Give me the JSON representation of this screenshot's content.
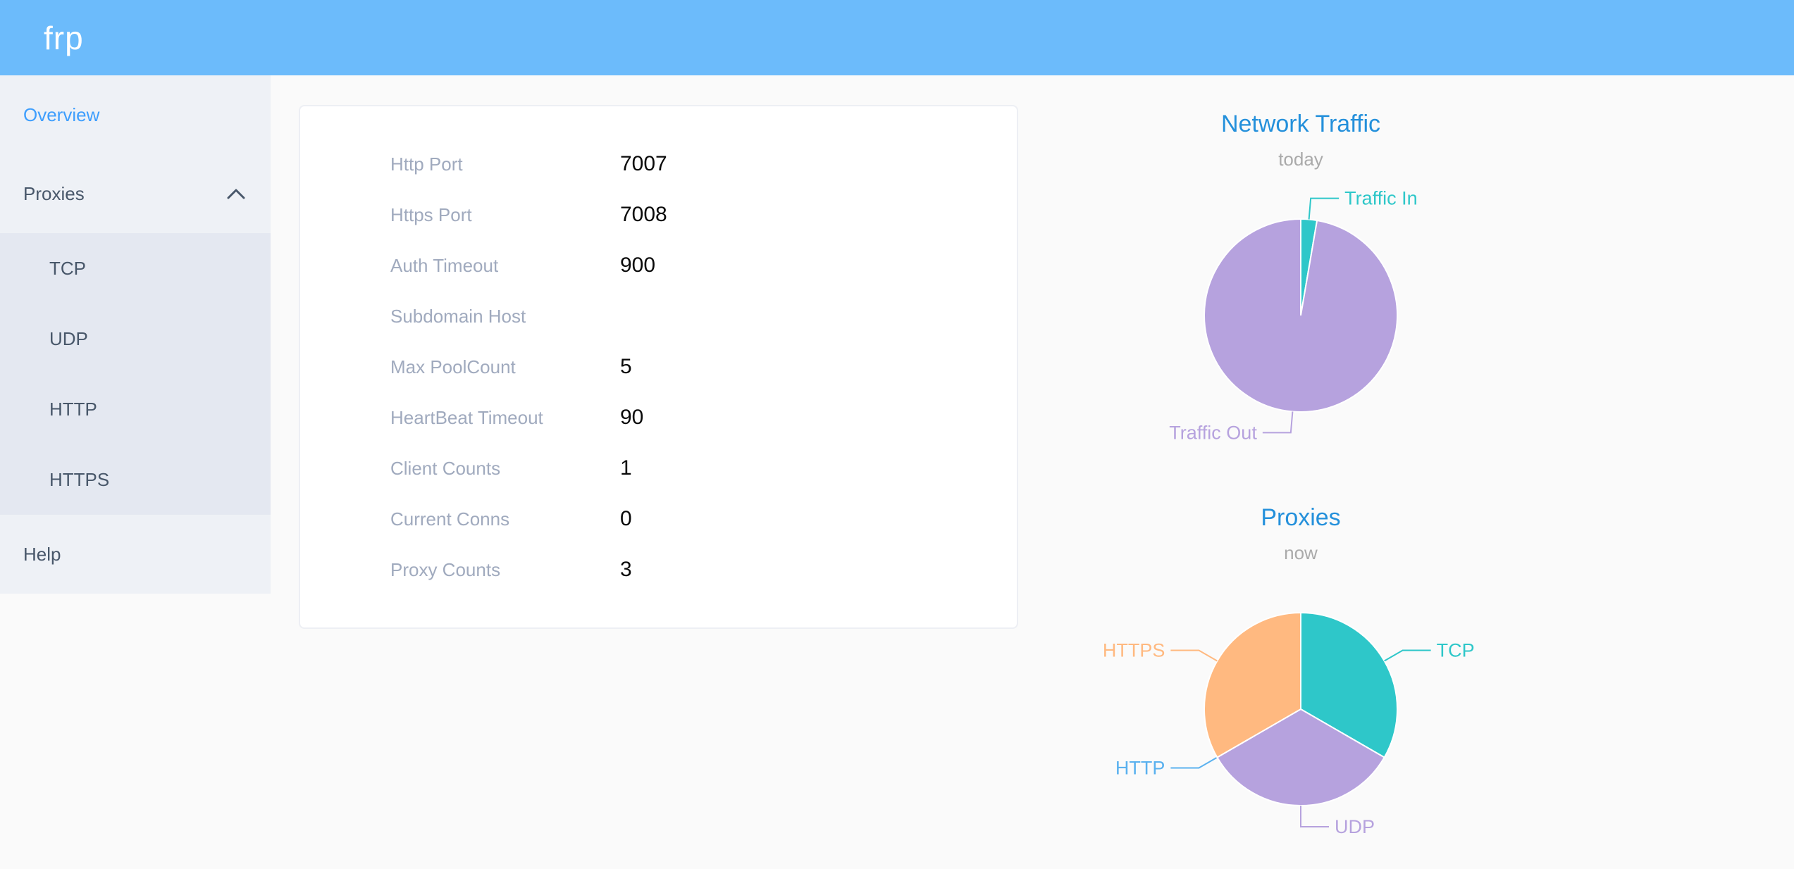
{
  "header": {
    "logo": "frp"
  },
  "sidebar": {
    "items": [
      {
        "label": "Overview",
        "active": true
      },
      {
        "label": "Proxies",
        "expanded": true,
        "children": [
          "TCP",
          "UDP",
          "HTTP",
          "HTTPS"
        ]
      },
      {
        "label": "Help"
      }
    ]
  },
  "overview": {
    "rows": [
      {
        "label": "Http Port",
        "value": "7007"
      },
      {
        "label": "Https Port",
        "value": "7008"
      },
      {
        "label": "Auth Timeout",
        "value": "900"
      },
      {
        "label": "Subdomain Host",
        "value": ""
      },
      {
        "label": "Max PoolCount",
        "value": "5"
      },
      {
        "label": "HeartBeat Timeout",
        "value": "90"
      },
      {
        "label": "Client Counts",
        "value": "1"
      },
      {
        "label": "Current Conns",
        "value": "0"
      },
      {
        "label": "Proxy Counts",
        "value": "3"
      }
    ]
  },
  "chart_data": [
    {
      "type": "pie",
      "title": "Network Traffic",
      "subtitle": "today",
      "legend_position": "none",
      "unit": "percent (estimated from arc angles; byte values not shown on screen)",
      "slices": [
        {
          "label": "Traffic In",
          "value": 2.7,
          "color": "#2ec7c9"
        },
        {
          "label": "Traffic Out",
          "value": 97.3,
          "color": "#b6a2de"
        }
      ]
    },
    {
      "type": "pie",
      "title": "Proxies",
      "subtitle": "now",
      "legend_position": "none",
      "unit": "proxy count",
      "slices": [
        {
          "label": "TCP",
          "value": 1,
          "color": "#2ec7c9"
        },
        {
          "label": "UDP",
          "value": 1,
          "color": "#b6a2de"
        },
        {
          "label": "HTTP",
          "value": 0,
          "color": "#5ab1ef"
        },
        {
          "label": "HTTPS",
          "value": 1,
          "color": "#ffb980"
        }
      ]
    }
  ],
  "theme": {
    "page_bg": "#fafafa",
    "header_bg": "#6cbbfb",
    "sidebar_bg": "#eef1f6",
    "submenu_bg": "#e4e8f1",
    "menu_text": "#48576a",
    "accent": "#3e9efd",
    "chart_title": "#2490db",
    "chart_subtitle": "#aaaaaa",
    "card_bg": "#ffffff",
    "card_border": "#edeff4",
    "label_color": "#a0aabe",
    "value_color": "#0a0a0a",
    "logo_color": "#ffffff"
  }
}
